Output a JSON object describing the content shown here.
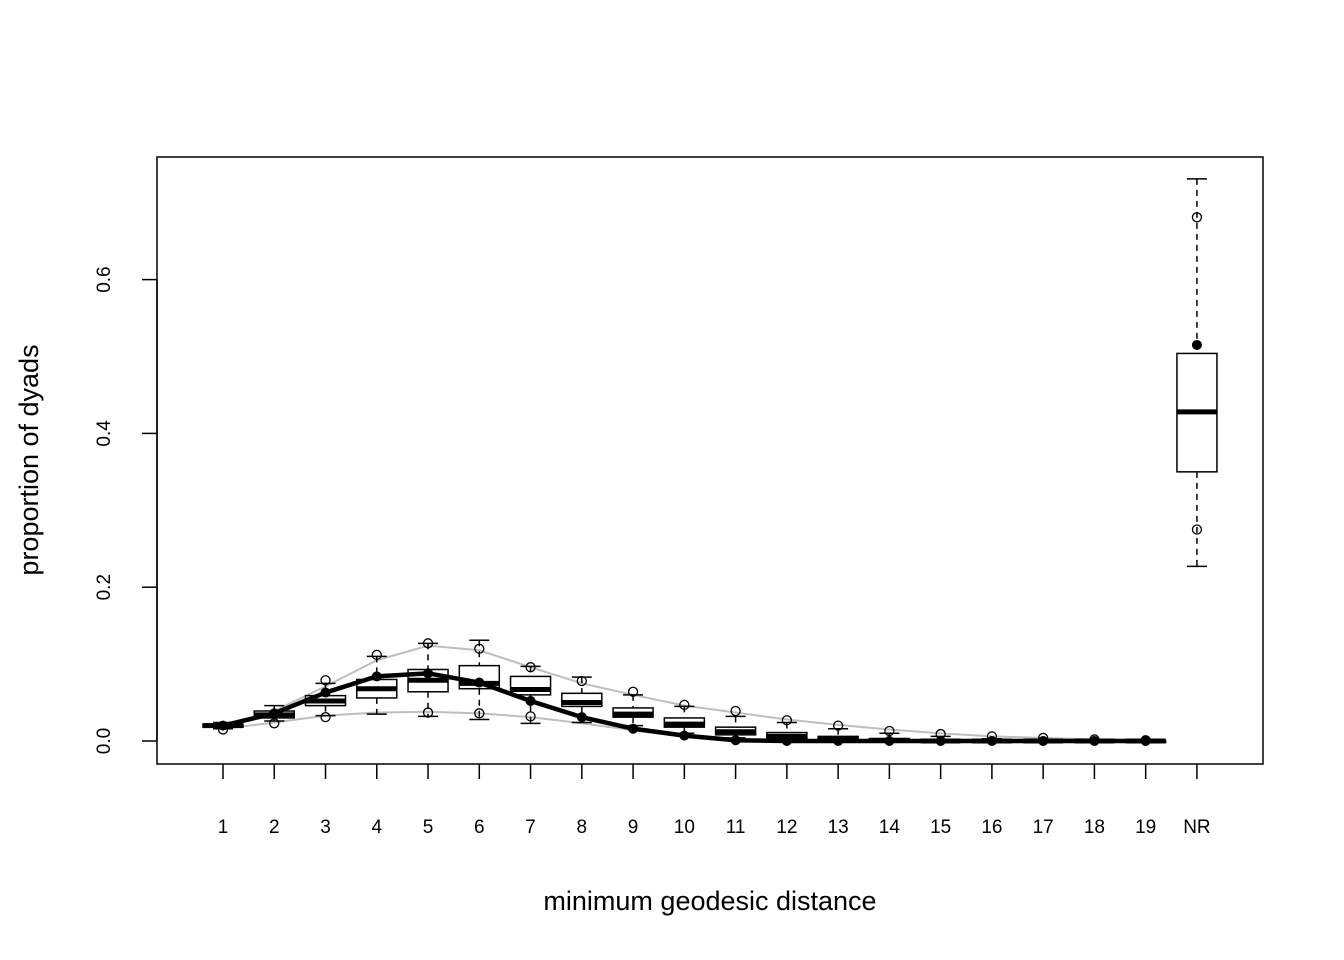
{
  "chart_data": {
    "type": "boxplot",
    "title": "",
    "xlabel": "minimum geodesic distance",
    "ylabel": "proportion of dyads",
    "categories": [
      "1",
      "2",
      "3",
      "4",
      "5",
      "6",
      "7",
      "8",
      "9",
      "10",
      "11",
      "12",
      "13",
      "14",
      "15",
      "16",
      "17",
      "18",
      "19",
      "NR"
    ],
    "ylim": [
      -0.03,
      0.755
    ],
    "y_ticks": [
      0.0,
      0.2,
      0.4,
      0.6
    ],
    "y_tick_labels": [
      "0.0",
      "0.2",
      "0.4",
      "0.6"
    ],
    "grid": false,
    "boxes": [
      {
        "category": "1",
        "whisker_low": 0.016,
        "q1": 0.018,
        "median": 0.02,
        "q3": 0.022,
        "whisker_high": 0.024,
        "outliers": [
          0.015
        ]
      },
      {
        "category": "2",
        "whisker_low": 0.026,
        "q1": 0.03,
        "median": 0.034,
        "q3": 0.039,
        "whisker_high": 0.046,
        "outliers": [
          0.023
        ]
      },
      {
        "category": "3",
        "whisker_low": 0.033,
        "q1": 0.046,
        "median": 0.052,
        "q3": 0.059,
        "whisker_high": 0.075,
        "outliers": [
          0.031,
          0.079
        ]
      },
      {
        "category": "4",
        "whisker_low": 0.035,
        "q1": 0.056,
        "median": 0.068,
        "q3": 0.08,
        "whisker_high": 0.11,
        "outliers": [
          0.112
        ]
      },
      {
        "category": "5",
        "whisker_low": 0.032,
        "q1": 0.064,
        "median": 0.079,
        "q3": 0.093,
        "whisker_high": 0.127,
        "outliers": [
          0.037,
          0.127
        ]
      },
      {
        "category": "6",
        "whisker_low": 0.028,
        "q1": 0.068,
        "median": 0.075,
        "q3": 0.098,
        "whisker_high": 0.131,
        "outliers": [
          0.036,
          0.12
        ]
      },
      {
        "category": "7",
        "whisker_low": 0.023,
        "q1": 0.06,
        "median": 0.067,
        "q3": 0.084,
        "whisker_high": 0.097,
        "outliers": [
          0.032,
          0.096
        ]
      },
      {
        "category": "8",
        "whisker_low": 0.024,
        "q1": 0.045,
        "median": 0.05,
        "q3": 0.062,
        "whisker_high": 0.083,
        "outliers": [
          0.078
        ]
      },
      {
        "category": "9",
        "whisker_low": 0.02,
        "q1": 0.031,
        "median": 0.035,
        "q3": 0.043,
        "whisker_high": 0.06,
        "outliers": [
          0.064
        ]
      },
      {
        "category": "10",
        "whisker_low": 0.01,
        "q1": 0.018,
        "median": 0.022,
        "q3": 0.03,
        "whisker_high": 0.045,
        "outliers": [
          0.047
        ]
      },
      {
        "category": "11",
        "whisker_low": 0.004,
        "q1": 0.008,
        "median": 0.012,
        "q3": 0.018,
        "whisker_high": 0.032,
        "outliers": [
          0.039
        ]
      },
      {
        "category": "12",
        "whisker_low": 0.001,
        "q1": 0.003,
        "median": 0.006,
        "q3": 0.011,
        "whisker_high": 0.024,
        "outliers": [
          0.027
        ]
      },
      {
        "category": "13",
        "whisker_low": 0.0,
        "q1": 0.001,
        "median": 0.003,
        "q3": 0.006,
        "whisker_high": 0.016,
        "outliers": [
          0.02
        ]
      },
      {
        "category": "14",
        "whisker_low": 0.0,
        "q1": 0.0,
        "median": 0.001,
        "q3": 0.003,
        "whisker_high": 0.01,
        "outliers": [
          0.013
        ]
      },
      {
        "category": "15",
        "whisker_low": 0.0,
        "q1": 0.0,
        "median": 0.0,
        "q3": 0.002,
        "whisker_high": 0.006,
        "outliers": [
          0.009
        ]
      },
      {
        "category": "16",
        "whisker_low": 0.0,
        "q1": 0.0,
        "median": 0.0,
        "q3": 0.001,
        "whisker_high": 0.003,
        "outliers": [
          0.006
        ]
      },
      {
        "category": "17",
        "whisker_low": 0.0,
        "q1": 0.0,
        "median": 0.0,
        "q3": 0.0,
        "whisker_high": 0.002,
        "outliers": [
          0.004
        ]
      },
      {
        "category": "18",
        "whisker_low": 0.0,
        "q1": 0.0,
        "median": 0.0,
        "q3": 0.0,
        "whisker_high": 0.001,
        "outliers": [
          0.002
        ]
      },
      {
        "category": "19",
        "whisker_low": 0.0,
        "q1": 0.0,
        "median": 0.0,
        "q3": 0.0,
        "whisker_high": 0.0,
        "outliers": [
          0.001
        ]
      },
      {
        "category": "NR",
        "whisker_low": 0.227,
        "q1": 0.35,
        "median": 0.428,
        "q3": 0.504,
        "whisker_high": 0.731,
        "outliers": [
          0.275,
          0.681
        ]
      }
    ],
    "series": [
      {
        "values": [
          0.02,
          0.036,
          0.063,
          0.084,
          0.088,
          0.076,
          0.052,
          0.031,
          0.016,
          0.007,
          0.001,
          0.0,
          0.0,
          0.0,
          0.0,
          0.0,
          0.0,
          0.0,
          0.0,
          0.515
        ],
        "color": "#000000"
      },
      {
        "values": [
          0.017,
          0.039,
          0.071,
          0.105,
          0.124,
          0.118,
          0.096,
          0.075,
          0.06,
          0.046,
          0.037,
          0.028,
          0.021,
          0.015,
          0.01,
          0.006,
          0.004,
          0.002,
          0.001
        ],
        "color": "#bebebe"
      },
      {
        "values": [
          0.016,
          0.024,
          0.033,
          0.037,
          0.038,
          0.036,
          0.031,
          0.023,
          0.014,
          0.006,
          0.002,
          0.0,
          0.0,
          0.0,
          0.0,
          0.0,
          0.0,
          0.0,
          0.0
        ],
        "color": "#bebebe"
      }
    ]
  }
}
